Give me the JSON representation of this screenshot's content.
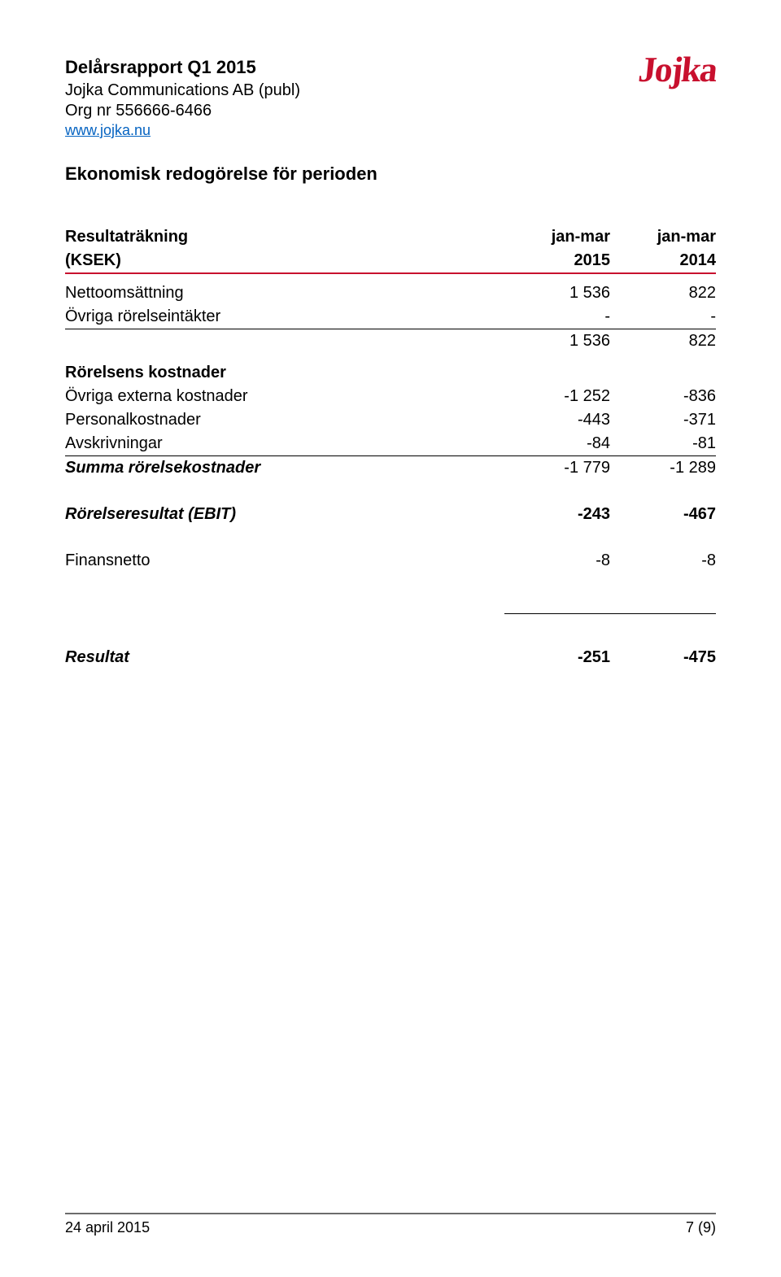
{
  "colors": {
    "brand_red": "#c8102e",
    "link_blue": "#0563c1",
    "footer_rule": "#6b6b6b",
    "text": "#000000",
    "background": "#ffffff"
  },
  "header": {
    "report_title": "Delårsrapport Q1 2015",
    "company": "Jojka Communications AB (publ)",
    "orgnr": "Org nr 556666-6466",
    "url": "www.jojka.nu",
    "logo_text": "Jojka"
  },
  "section_title": "Ekonomisk redogörelse för perioden",
  "income_statement": {
    "heading_label": "Resultaträkning",
    "heading_unit": "(KSEK)",
    "col1_line1": "jan-mar",
    "col1_line2": "2015",
    "col2_line1": "jan-mar",
    "col2_line2": "2014",
    "rows": {
      "net_sales": {
        "label": "Nettoomsättning",
        "v1": "1 536",
        "v2": "822"
      },
      "other_income": {
        "label": "Övriga rörelseintäkter",
        "v1": "-",
        "v2": "-"
      },
      "subtotal_income": {
        "label": "",
        "v1": "1 536",
        "v2": "822"
      },
      "cost_heading": {
        "label": "Rörelsens kostnader"
      },
      "other_ext": {
        "label": "Övriga externa kostnader",
        "v1": "-1 252",
        "v2": "-836"
      },
      "personnel": {
        "label": "Personalkostnader",
        "v1": "-443",
        "v2": "-371"
      },
      "deprec": {
        "label": "Avskrivningar",
        "v1": "-84",
        "v2": "-81"
      },
      "sum_costs": {
        "label": "Summa rörelsekostnader",
        "v1": "-1 779",
        "v2": "-1 289"
      },
      "ebit": {
        "label": "Rörelseresultat (EBIT)",
        "v1": "-243",
        "v2": "-467"
      },
      "finnet": {
        "label": "Finansnetto",
        "v1": "-8",
        "v2": "-8"
      },
      "result": {
        "label": "Resultat",
        "v1": "-251",
        "v2": "-475"
      }
    }
  },
  "footer": {
    "date": "24 april 2015",
    "page": "7 (9)"
  }
}
